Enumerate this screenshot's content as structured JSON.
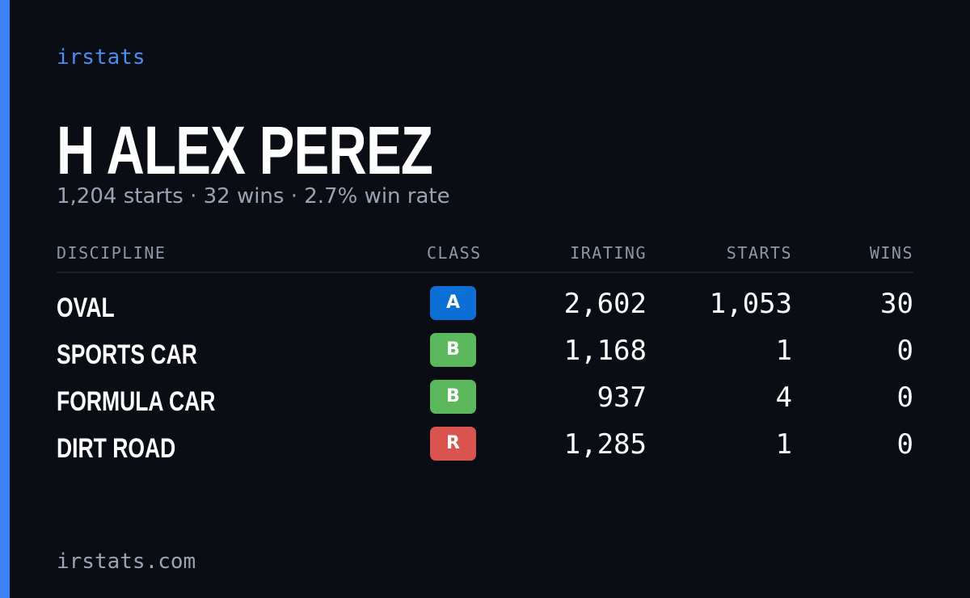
{
  "header": {
    "brand": "irstats",
    "name": "H ALEX PEREZ",
    "summary": "1,204 starts · 32 wins · 2.7% win rate"
  },
  "table": {
    "columns": [
      "DISCIPLINE",
      "CLASS",
      "IRATING",
      "STARTS",
      "WINS"
    ],
    "rows": [
      {
        "discipline": "OVAL",
        "class": "A",
        "class_color": "#0b6fd6",
        "irating": "2,602",
        "starts": "1,053",
        "wins": "30"
      },
      {
        "discipline": "SPORTS CAR",
        "class": "B",
        "class_color": "#5cb85c",
        "irating": "1,168",
        "starts": "1",
        "wins": "0"
      },
      {
        "discipline": "FORMULA CAR",
        "class": "B",
        "class_color": "#5cb85c",
        "irating": "937",
        "starts": "4",
        "wins": "0"
      },
      {
        "discipline": "DIRT ROAD",
        "class": "R",
        "class_color": "#d9534f",
        "irating": "1,285",
        "starts": "1",
        "wins": "0"
      }
    ]
  },
  "footer": {
    "url": "irstats.com"
  }
}
